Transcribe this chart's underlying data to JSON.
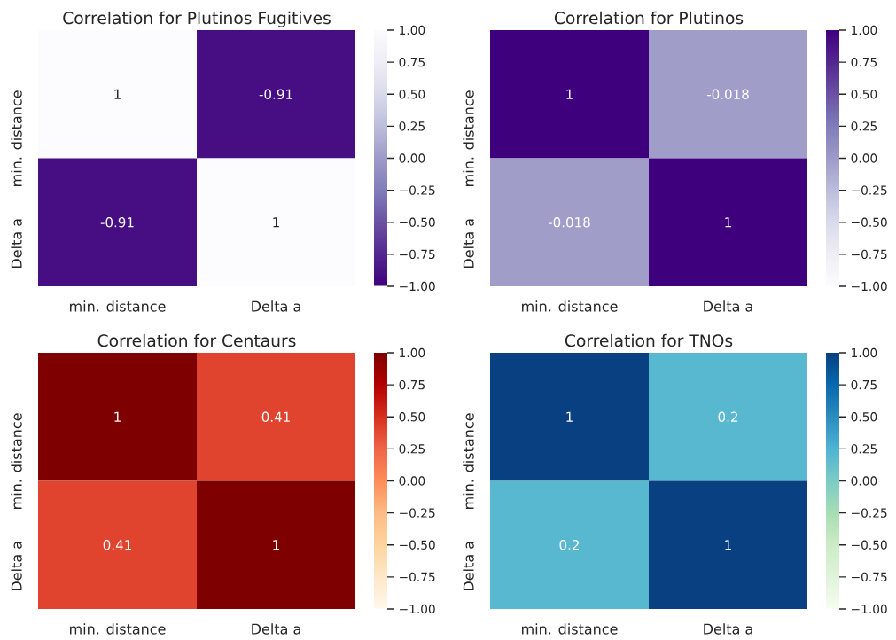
{
  "chart_data": [
    {
      "type": "heatmap",
      "title": "Correlation for Plutinos Fugitives",
      "categories": [
        "min. distance",
        "Delta a"
      ],
      "y_categories": [
        "min. distance",
        "Delta a"
      ],
      "cells": [
        [
          1,
          -0.91
        ],
        [
          -0.91,
          1
        ]
      ],
      "data_labels": true,
      "clim": [
        -1,
        1
      ],
      "cticks": [
        {
          "value": -1,
          "label": "−1.00"
        },
        {
          "value": -0.75,
          "label": "−0.75"
        },
        {
          "value": -0.5,
          "label": "−0.50"
        },
        {
          "value": -0.25,
          "label": "−0.25"
        },
        {
          "value": 0,
          "label": "0.00"
        },
        {
          "value": 0.25,
          "label": "0.25"
        },
        {
          "value": 0.5,
          "label": "0.50"
        },
        {
          "value": 0.75,
          "label": "0.75"
        },
        {
          "value": 1,
          "label": "1.00"
        }
      ],
      "colors": [
        "#3f007d",
        "#54278f",
        "#6a51a3",
        "#807dba",
        "#9e9ac8",
        "#bcbddc",
        "#dadaeb",
        "#efedf5",
        "#fcfbfd"
      ]
    },
    {
      "type": "heatmap",
      "title": "Correlation for Plutinos",
      "categories": [
        "min. distance",
        "Delta a"
      ],
      "y_categories": [
        "min. distance",
        "Delta a"
      ],
      "cells": [
        [
          1,
          -0.018
        ],
        [
          -0.018,
          1
        ]
      ],
      "data_labels": true,
      "clim": [
        -1,
        1
      ],
      "cticks": [
        {
          "value": -1,
          "label": "−1.00"
        },
        {
          "value": -0.75,
          "label": "−0.75"
        },
        {
          "value": -0.5,
          "label": "−0.50"
        },
        {
          "value": -0.25,
          "label": "−0.25"
        },
        {
          "value": 0,
          "label": "0.00"
        },
        {
          "value": 0.25,
          "label": "0.25"
        },
        {
          "value": 0.5,
          "label": "0.50"
        },
        {
          "value": 0.75,
          "label": "0.75"
        },
        {
          "value": 1,
          "label": "1.00"
        }
      ],
      "colors": [
        "#fcfbfd",
        "#efedf5",
        "#dadaeb",
        "#bcbddc",
        "#9e9ac8",
        "#807dba",
        "#6a51a3",
        "#54278f",
        "#3f007d"
      ]
    },
    {
      "type": "heatmap",
      "title": "Correlation for Centaurs",
      "categories": [
        "min. distance",
        "Delta a"
      ],
      "y_categories": [
        "min. distance",
        "Delta a"
      ],
      "cells": [
        [
          1,
          0.41
        ],
        [
          0.41,
          1
        ]
      ],
      "data_labels": true,
      "clim": [
        -1,
        1
      ],
      "cticks": [
        {
          "value": -1,
          "label": "−1.00"
        },
        {
          "value": -0.75,
          "label": "−0.75"
        },
        {
          "value": -0.5,
          "label": "−0.50"
        },
        {
          "value": -0.25,
          "label": "−0.25"
        },
        {
          "value": 0,
          "label": "0.00"
        },
        {
          "value": 0.25,
          "label": "0.25"
        },
        {
          "value": 0.5,
          "label": "0.50"
        },
        {
          "value": 0.75,
          "label": "0.75"
        },
        {
          "value": 1,
          "label": "1.00"
        }
      ],
      "colors": [
        "#fff7ec",
        "#fee8c8",
        "#fdd49e",
        "#fdbb84",
        "#fc8d59",
        "#ef6548",
        "#d7301f",
        "#b30000",
        "#7f0000"
      ]
    },
    {
      "type": "heatmap",
      "title": "Correlation for TNOs",
      "categories": [
        "min. distance",
        "Delta a"
      ],
      "y_categories": [
        "min. distance",
        "Delta a"
      ],
      "cells": [
        [
          1,
          0.2
        ],
        [
          0.2,
          1
        ]
      ],
      "data_labels": true,
      "clim": [
        -1,
        1
      ],
      "cticks": [
        {
          "value": -1,
          "label": "−1.00"
        },
        {
          "value": -0.75,
          "label": "−0.75"
        },
        {
          "value": -0.5,
          "label": "−0.50"
        },
        {
          "value": -0.25,
          "label": "−0.25"
        },
        {
          "value": 0,
          "label": "0.00"
        },
        {
          "value": 0.25,
          "label": "0.25"
        },
        {
          "value": 0.5,
          "label": "0.50"
        },
        {
          "value": 0.75,
          "label": "0.75"
        },
        {
          "value": 1,
          "label": "1.00"
        }
      ],
      "colors": [
        "#f7fcf0",
        "#e0f3db",
        "#ccebc5",
        "#a8ddb5",
        "#7bccc4",
        "#4eb3d3",
        "#2b8cbe",
        "#0868ac",
        "#084081"
      ]
    }
  ]
}
